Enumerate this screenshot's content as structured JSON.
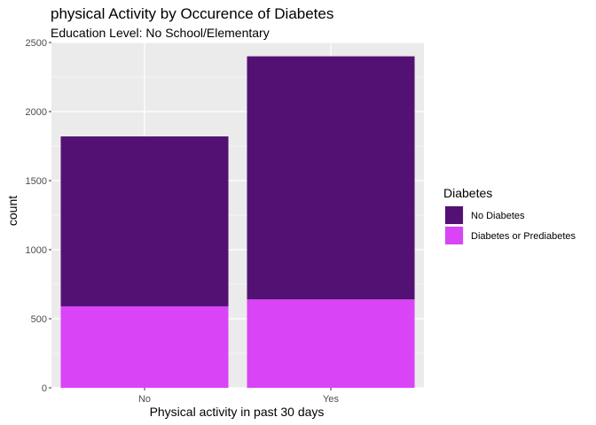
{
  "chart_data": {
    "type": "bar",
    "stacked": true,
    "title": "physical Activity by Occurence of Diabetes",
    "subtitle": "Education Level: No School/Elementary",
    "xlabel": "Physical activity in past 30 days",
    "ylabel": "count",
    "categories": [
      "No",
      "Yes"
    ],
    "ylim": [
      0,
      2500
    ],
    "yticks": [
      0,
      500,
      1000,
      1500,
      2000,
      2500
    ],
    "grid": true,
    "legend": {
      "title": "Diabetes",
      "position": "right"
    },
    "series": [
      {
        "name": "Diabetes or Prediabetes",
        "values": [
          590,
          640
        ],
        "color": "#DA44F7"
      },
      {
        "name": "No Diabetes",
        "values": [
          1230,
          1760
        ],
        "color": "#531173"
      }
    ]
  }
}
